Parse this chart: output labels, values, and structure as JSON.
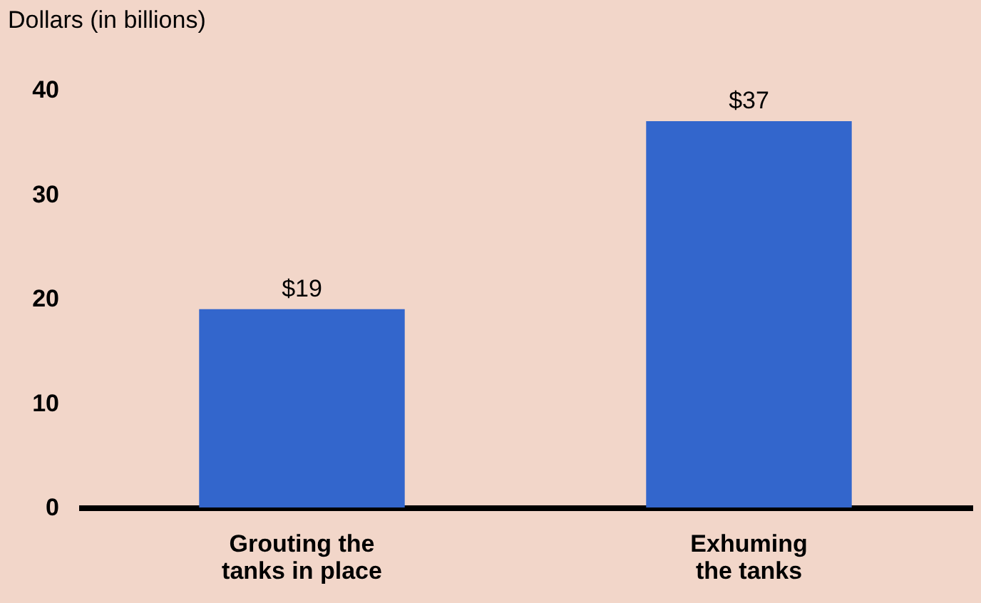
{
  "chart_data": {
    "type": "bar",
    "ylabel": "Dollars (in billions)",
    "categories": [
      "Grouting the tanks in place",
      "Exhuming the tanks"
    ],
    "values": [
      19,
      37
    ],
    "color": "#3366cc",
    "value_labels": [
      "$19",
      "$37"
    ],
    "ylim": [
      0,
      40
    ],
    "yticks": [
      0,
      10,
      20,
      30,
      40
    ],
    "grid": false
  }
}
